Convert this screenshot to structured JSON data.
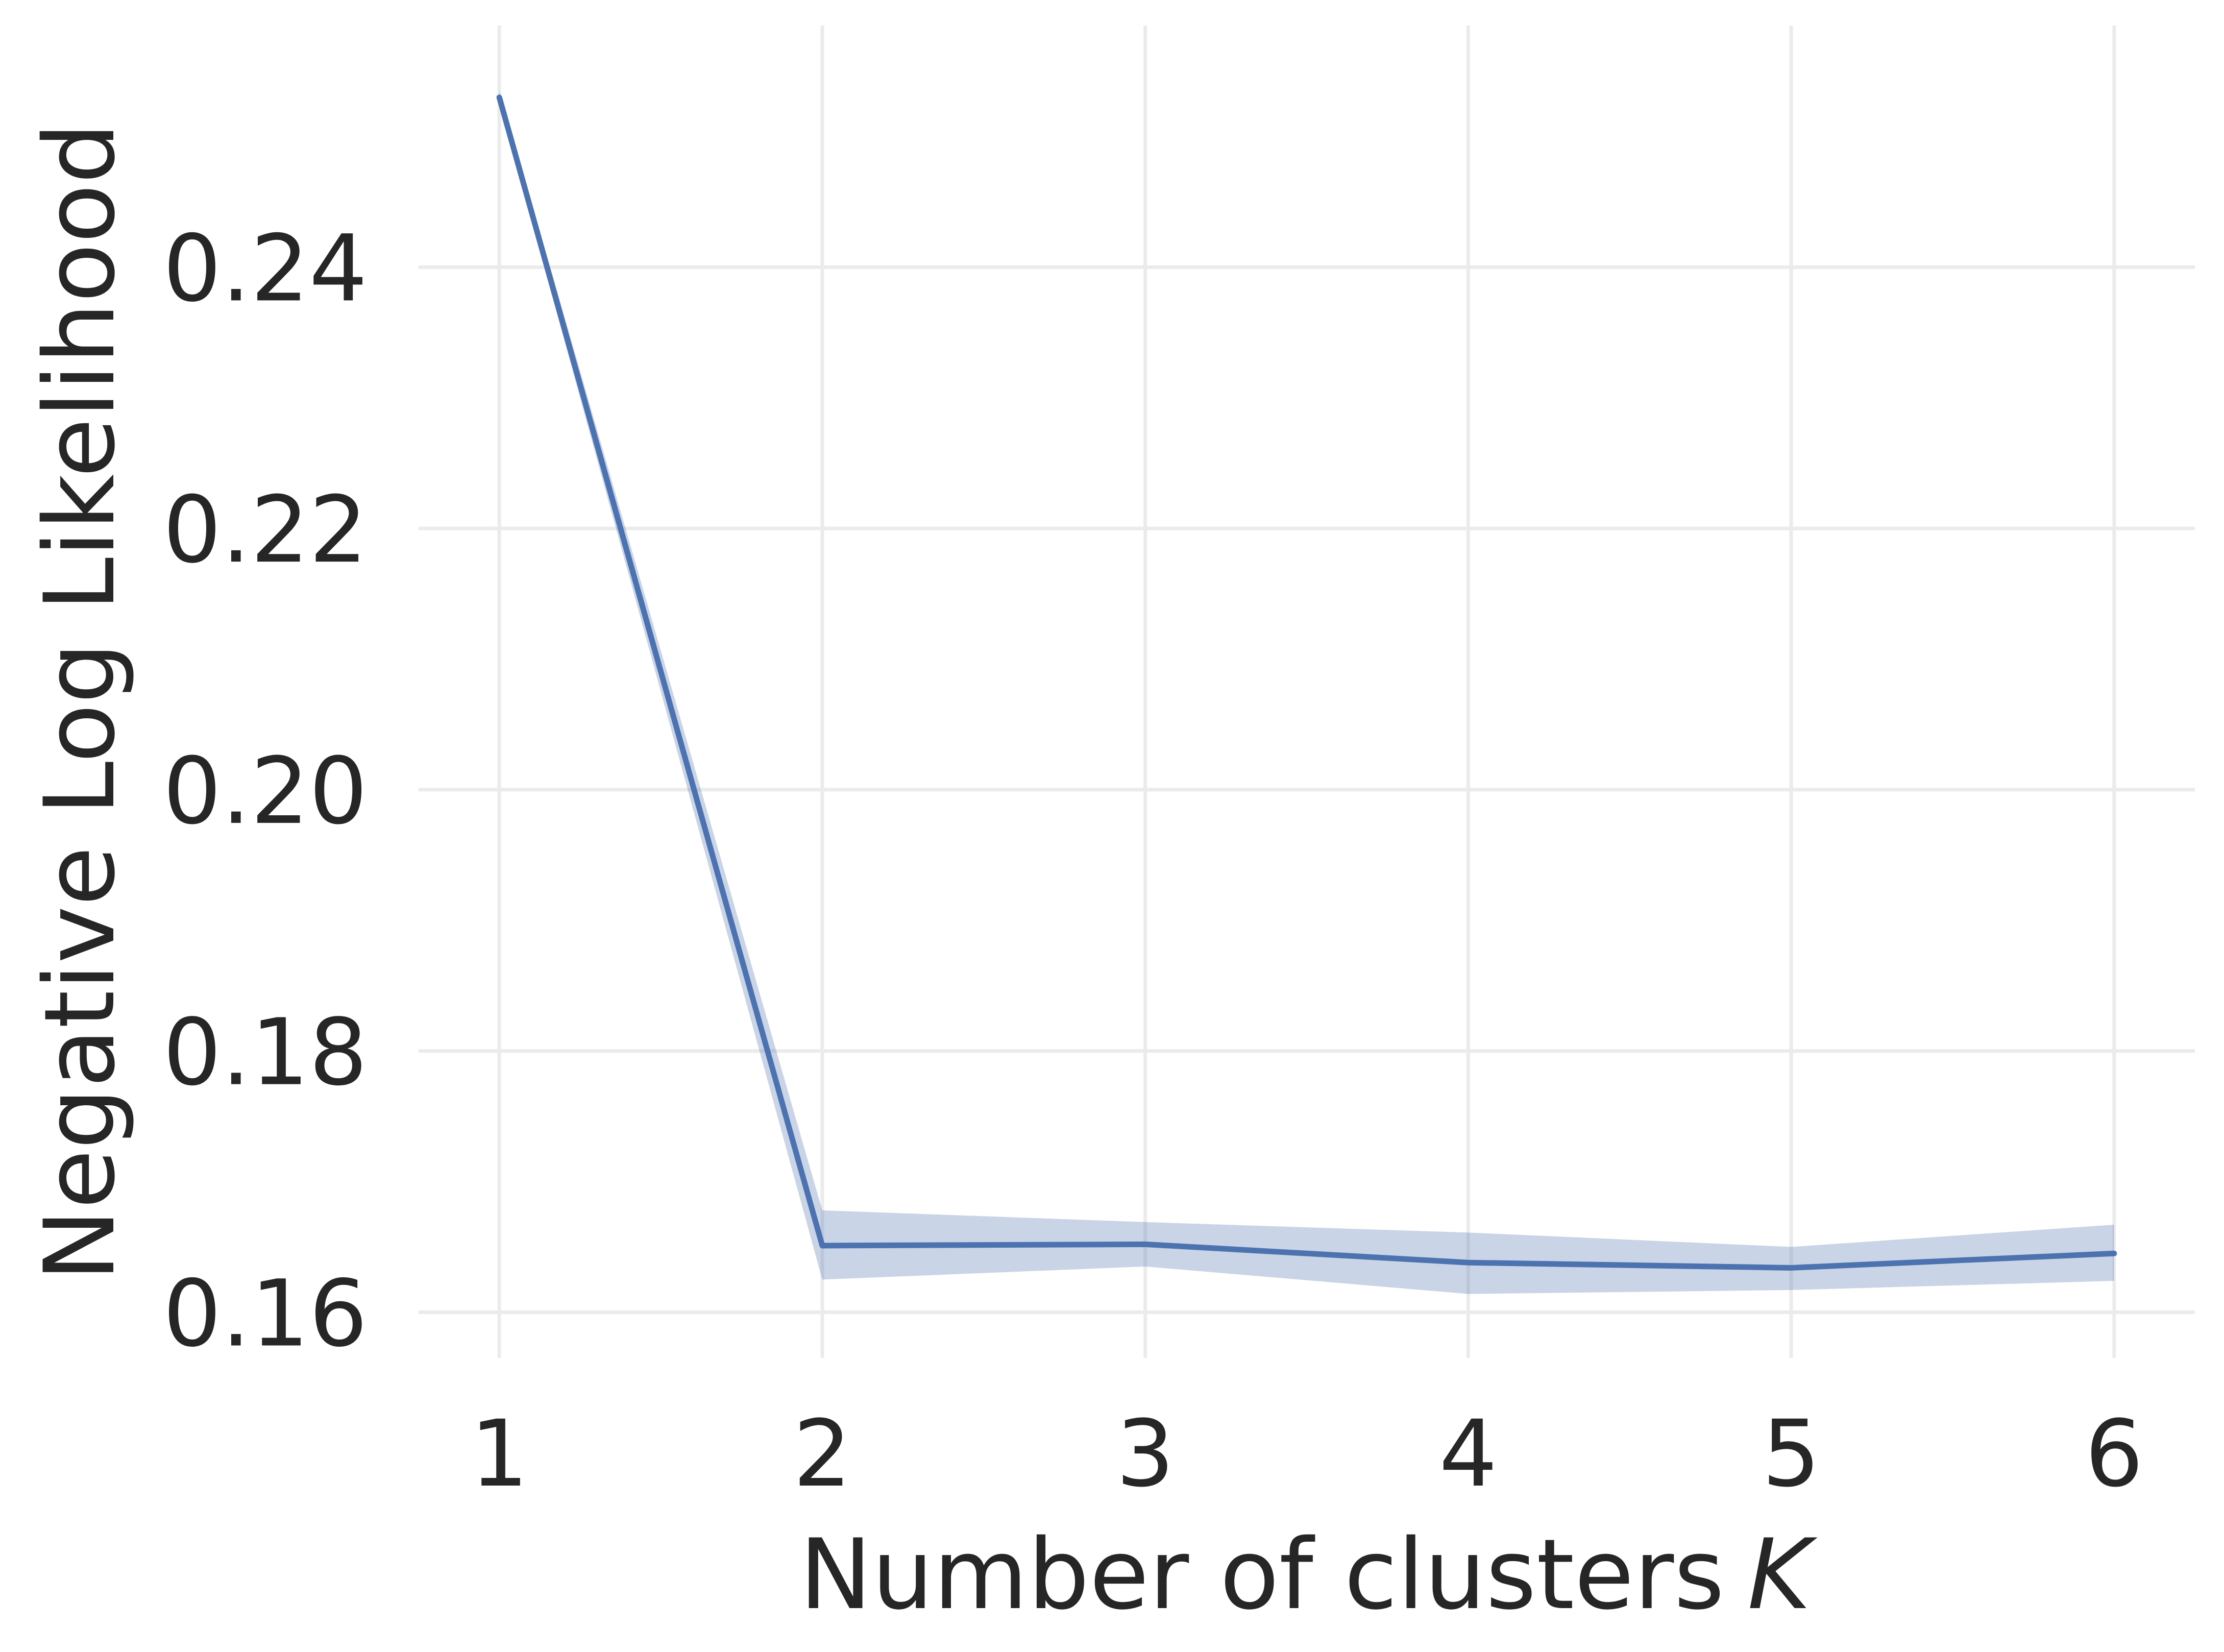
{
  "chart_data": {
    "type": "line",
    "xlabel": "Number of clusters",
    "xlabel_math": "K",
    "ylabel": "Negative Log Likelihood",
    "x": [
      1,
      2,
      3,
      4,
      5,
      6
    ],
    "x_ticks": [
      "1",
      "2",
      "3",
      "4",
      "5",
      "6"
    ],
    "y_ticks": [
      "0.16",
      "0.18",
      "0.20",
      "0.22",
      "0.24"
    ],
    "y_tick_values": [
      0.16,
      0.18,
      0.2,
      0.22,
      0.24
    ],
    "xlim": [
      0.75,
      6.25
    ],
    "ylim": [
      0.1565,
      0.2585
    ],
    "grid": true,
    "series": [
      {
        "values": [
          0.253,
          0.1651,
          0.1652,
          0.1638,
          0.1634,
          0.1645
        ],
        "lower": [
          0.2525,
          0.1625,
          0.1635,
          0.1614,
          0.1617,
          0.1624
        ],
        "upper": [
          0.2535,
          0.1678,
          0.1669,
          0.1661,
          0.165,
          0.1667
        ],
        "color": "#4c72b0",
        "band_color": "#4c72b0"
      }
    ],
    "colors": {
      "grid": "#ebebeb",
      "text": "#262626",
      "background": "#ffffff"
    }
  }
}
